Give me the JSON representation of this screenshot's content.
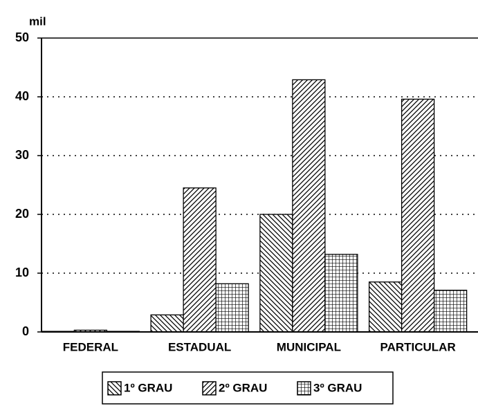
{
  "chart_data": {
    "type": "bar",
    "y_label": "mil",
    "categories": [
      "FEDERAL",
      "ESTADUAL",
      "MUNICIPAL",
      "PARTICULAR"
    ],
    "series": [
      {
        "name": "1º GRAU",
        "color": "#000000",
        "hatch": "backslash",
        "values": [
          0.1,
          2.9,
          20,
          8.5
        ]
      },
      {
        "name": "2º GRAU",
        "color": "#000000",
        "hatch": "slash",
        "values": [
          0.3,
          24.5,
          42.9,
          39.6
        ]
      },
      {
        "name": "3º GRAU",
        "color": "#000000",
        "hatch": "grid",
        "values": [
          0.1,
          8.2,
          13.2,
          7.1
        ]
      }
    ],
    "ylim": [
      0,
      50
    ],
    "yticks": [
      0,
      10,
      20,
      30,
      40,
      50
    ],
    "grid": true,
    "legend": "bottom"
  }
}
